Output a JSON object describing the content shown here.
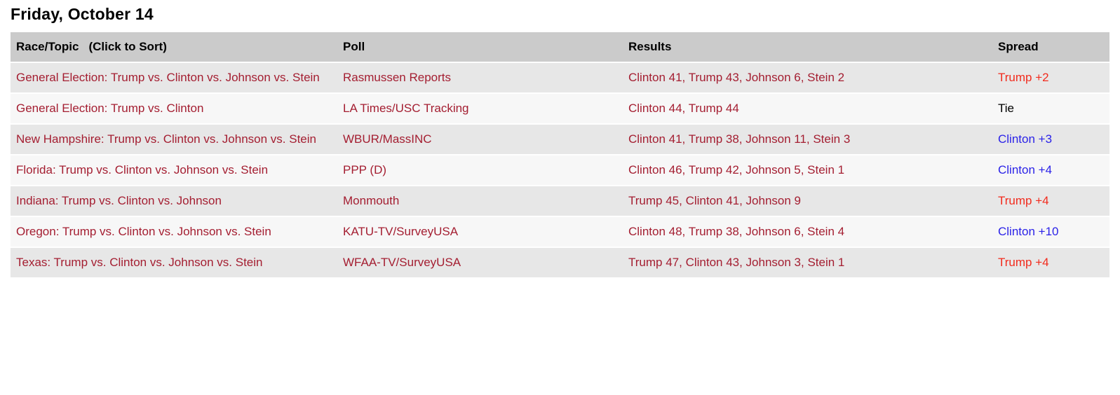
{
  "title": "Friday, October 14",
  "table": {
    "headers": {
      "race": "Race/Topic",
      "sort_hint": "(Click to Sort)",
      "poll": "Poll",
      "results": "Results",
      "spread": "Spread"
    },
    "rows": [
      {
        "race": "General Election: Trump vs. Clinton vs. Johnson vs. Stein",
        "poll": "Rasmussen Reports",
        "results": "Clinton 41, Trump 43, Johnson 6, Stein 2",
        "spread": "Trump +2",
        "spread_color": "#f22b1d"
      },
      {
        "race": "General Election: Trump vs. Clinton",
        "poll": "LA Times/USC Tracking",
        "results": "Clinton 44, Trump 44",
        "spread": "Tie",
        "spread_color": "#000000"
      },
      {
        "race": "New Hampshire: Trump vs. Clinton vs. Johnson vs. Stein",
        "poll": "WBUR/MassINC",
        "results": "Clinton 41, Trump 38, Johnson 11, Stein 3",
        "spread": "Clinton +3",
        "spread_color": "#2b22e8"
      },
      {
        "race": "Florida: Trump vs. Clinton vs. Johnson vs. Stein",
        "poll": "PPP (D)",
        "results": "Clinton 46, Trump 42, Johnson 5, Stein 1",
        "spread": "Clinton +4",
        "spread_color": "#2b22e8"
      },
      {
        "race": "Indiana: Trump vs. Clinton vs. Johnson",
        "poll": "Monmouth",
        "results": "Trump 45, Clinton 41, Johnson 9",
        "spread": "Trump +4",
        "spread_color": "#f22b1d"
      },
      {
        "race": "Oregon: Trump vs. Clinton vs. Johnson vs. Stein",
        "poll": "KATU-TV/SurveyUSA",
        "results": "Clinton 48, Trump 38, Johnson 6, Stein 4",
        "spread": "Clinton +10",
        "spread_color": "#2b22e8"
      },
      {
        "race": "Texas: Trump vs. Clinton vs. Johnson vs. Stein",
        "poll": "WFAA-TV/SurveyUSA",
        "results": "Trump 47, Clinton 43, Johnson 3, Stein 1",
        "spread": "Trump +4",
        "spread_color": "#f22b1d"
      }
    ]
  },
  "colors": {
    "link_text": "#a41e31",
    "spread_trump_red": "#f22b1d",
    "spread_clinton_blue": "#2b22e8",
    "spread_tie_black": "#000000",
    "header_bg": "#cbcbcb",
    "row_alt_bg": "#e7e7e7",
    "row_bg": "#f7f7f7"
  }
}
